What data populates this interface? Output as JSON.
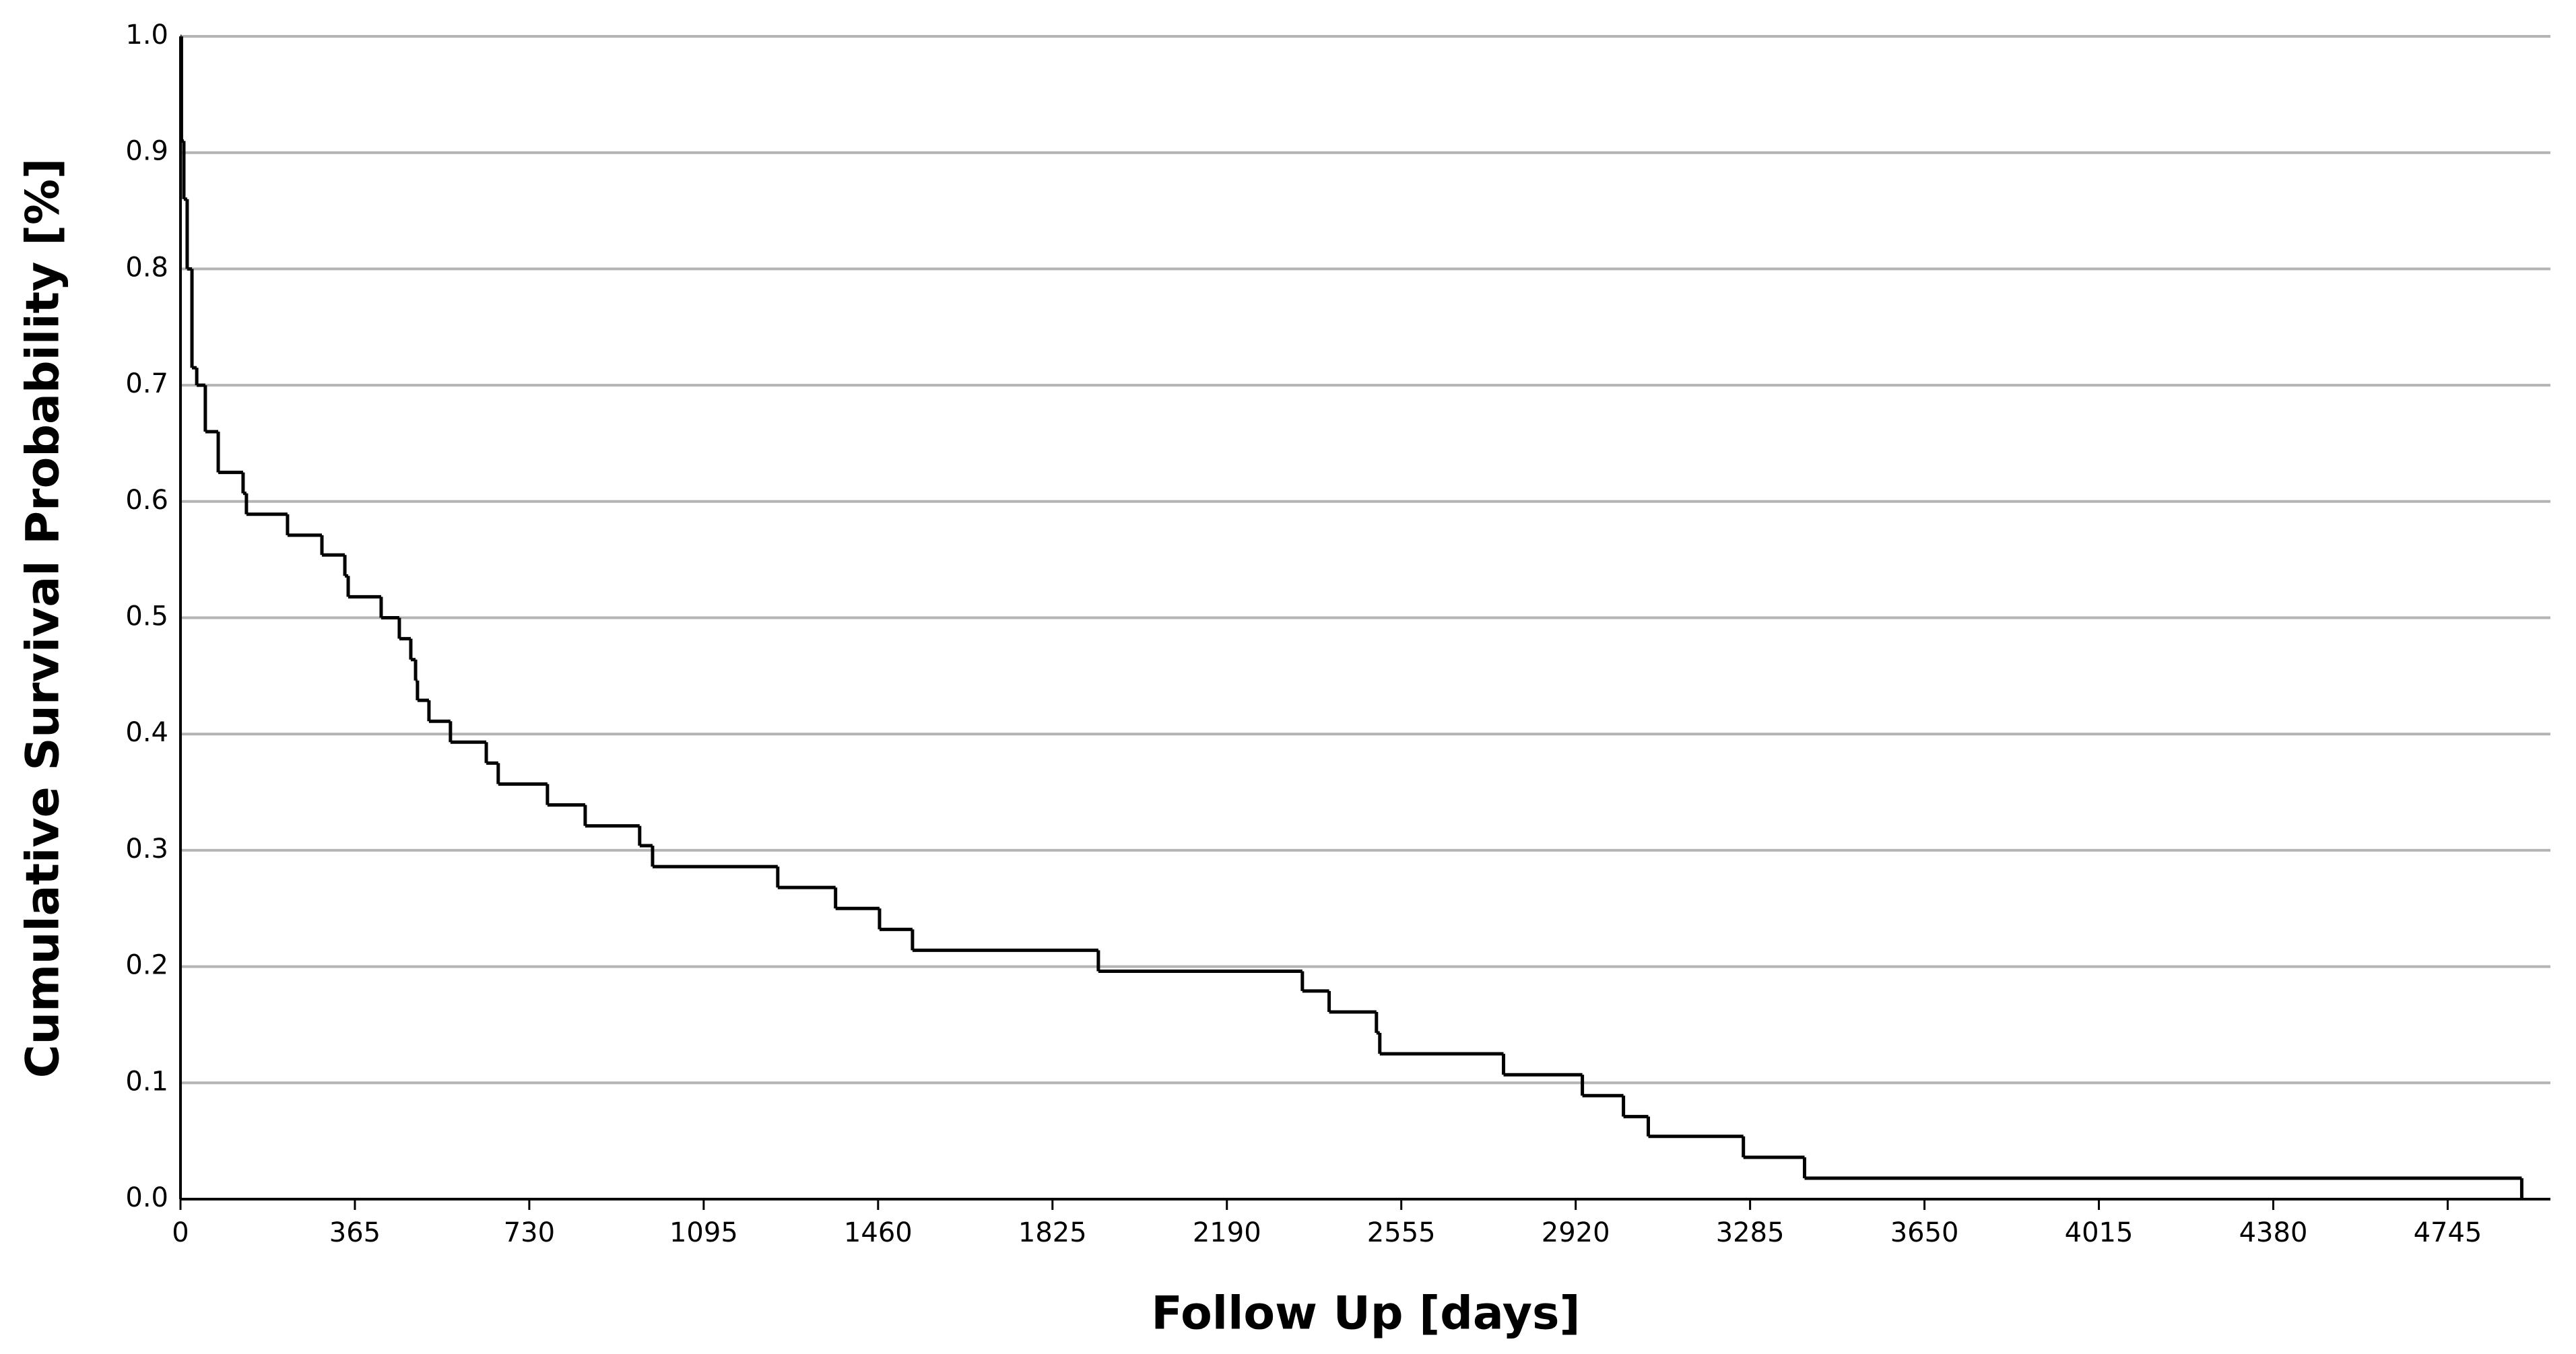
{
  "chart_data": {
    "type": "step",
    "x_label": "Follow Up [days]",
    "y_label": "Cumulative Survival Probability [%]",
    "x": [
      0,
      2,
      7,
      14,
      24,
      34,
      52,
      79,
      131,
      138,
      224,
      296,
      344,
      351,
      420,
      458,
      482,
      492,
      496,
      520,
      565,
      640,
      665,
      768,
      847,
      961,
      988,
      1250,
      1371,
      1463,
      1532,
      1921,
      2348,
      2404,
      2503,
      2510,
      2769,
      2934,
      3020,
      3072,
      3271,
      3399,
      4900
    ],
    "values": [
      1.0,
      0.91,
      0.86,
      0.8,
      0.715,
      0.7,
      0.66,
      0.625,
      0.607,
      0.589,
      0.571,
      0.554,
      0.536,
      0.518,
      0.5,
      0.482,
      0.464,
      0.446,
      0.429,
      0.411,
      0.393,
      0.375,
      0.357,
      0.339,
      0.321,
      0.304,
      0.286,
      0.268,
      0.25,
      0.232,
      0.214,
      0.196,
      0.179,
      0.161,
      0.143,
      0.125,
      0.107,
      0.089,
      0.071,
      0.054,
      0.036,
      0.018,
      0.0
    ],
    "color": "#000000",
    "xlim": [
      0,
      4960
    ],
    "ylim": [
      0,
      1
    ],
    "xticks": [
      0,
      365,
      730,
      1095,
      1460,
      1825,
      2190,
      2555,
      2920,
      3285,
      3650,
      4015,
      4380,
      4745
    ],
    "yticks": [
      {
        "value": 0,
        "label": "0.0"
      },
      0.1,
      0.2,
      0.3,
      0.4,
      0.5,
      0.6,
      0.7,
      0.8,
      0.9,
      {
        "value": 1,
        "label": "1.0"
      }
    ],
    "grid": true
  }
}
